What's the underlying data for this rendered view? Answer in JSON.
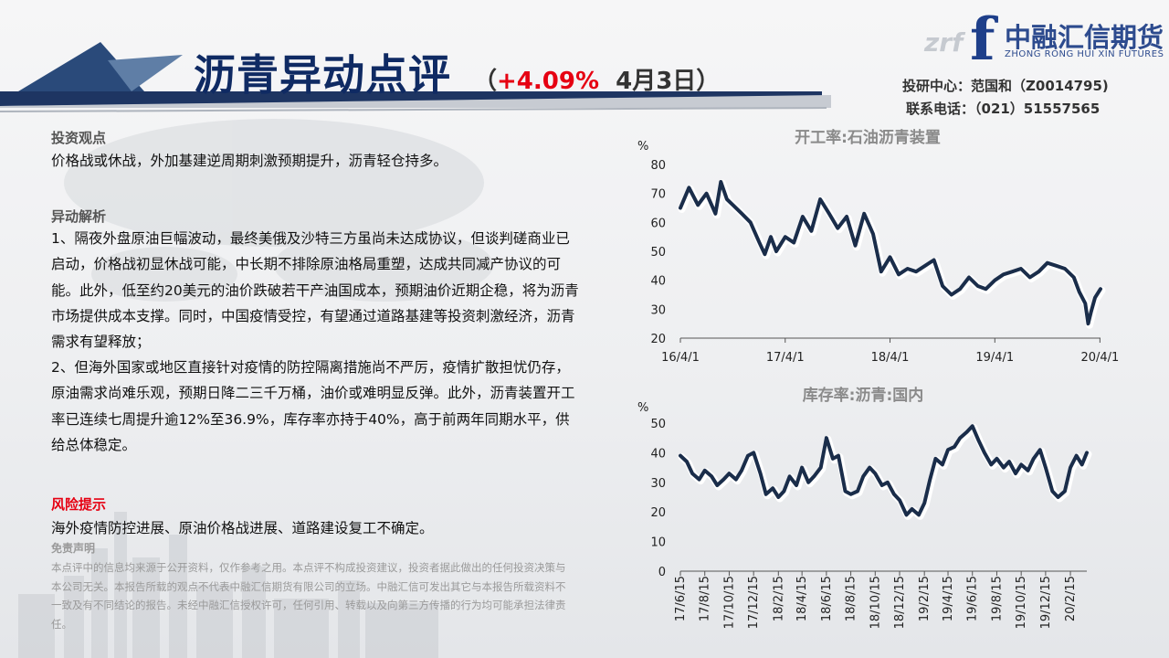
{
  "header": {
    "title": "沥青异动点评",
    "subtitle_open": "（",
    "change": "+4.09%",
    "date": "4月3日）",
    "logo_mark": "f",
    "logo_watermark": "zrf",
    "logo_cn": "中融汇信期货",
    "logo_en": "ZHONG RONG HUI XIN FUTURES",
    "contact_line1": "投研中心：范国和（Z0014795)",
    "contact_line2": "联系电话：（021）51557565"
  },
  "colors": {
    "brand_navy": "#0f2a63",
    "accent_red": "#e60012",
    "line_navy": "#1a2d4a"
  },
  "content": {
    "view_label": "投资观点",
    "view_text": "价格战或休战，外加基建逆周期刺激预期提升，沥青轻仓持多。",
    "analysis_label": "异动解析",
    "analysis_p1": "1、隔夜外盘原油巨幅波动，最终美俄及沙特三方虽尚未达成协议，但谈判磋商业已启动，价格战初显休战可能，中长期不排除原油格局重塑，达成共同减产协议的可能。此外，低至约20美元的油价跌破若干产油国成本，预期油价近期企稳，将为沥青市场提供成本支撑。同时，中国疫情受控，有望通过道路基建等投资刺激经济，沥青需求有望释放；",
    "analysis_p2": "2、但海外国家或地区直接针对疫情的防控隔离措施尚不严厉，疫情扩散担忧仍存，原油需求尚难乐观，预期日降二三千万桶，油价或难明显反弹。此外，沥青装置开工率已连续七周提升逾12%至36.9%，库存率亦持于40%，高于前两年同期水平，供给总体稳定。",
    "risk_label": "风险提示",
    "risk_text": "海外疫情防控进展、原油价格战进展、道路建设复工不确定。",
    "disclaimer_title": "免责声明",
    "disclaimer_text": "本点评中的信息均来源于公开资料，仅作参考之用。本点评不构成投资建议，投资者据此做出的任何投资决策与本公司无关。本报告所载的观点不代表中融汇信期货有限公司的立场。中融汇信可发出其它与本报告所载资料不一致及有不同结论的报告。未经中融汇信授权许可，任何引用、转载以及向第三方传播的行为均可能承担法律责任。"
  },
  "chart_data": [
    {
      "type": "line",
      "title": "开工率:石油沥青装置",
      "ylabel": "%",
      "ylim": [
        20,
        80
      ],
      "yticks": [
        20,
        30,
        40,
        50,
        60,
        70,
        80
      ],
      "xlim": [
        "2016-04-01",
        "2020-04-03"
      ],
      "xticks": [
        {
          "date": "2016-04-01",
          "label": "16/4/1"
        },
        {
          "date": "2017-04-01",
          "label": "17/4/1"
        },
        {
          "date": "2018-04-01",
          "label": "18/4/1"
        },
        {
          "date": "2019-04-01",
          "label": "19/4/1"
        },
        {
          "date": "2020-04-01",
          "label": "20/4/1"
        }
      ],
      "grid": false,
      "series": [
        {
          "x": [
            "2016-04-01",
            "2016-05-01",
            "2016-06-01",
            "2016-07-01",
            "2016-08-01",
            "2016-08-20",
            "2016-09-10",
            "2016-10-01",
            "2016-11-01",
            "2016-12-01",
            "2017-01-01",
            "2017-01-20",
            "2017-02-10",
            "2017-03-01",
            "2017-04-01",
            "2017-05-01",
            "2017-06-01",
            "2017-07-01",
            "2017-08-01",
            "2017-09-01",
            "2017-10-01",
            "2017-11-01",
            "2017-12-01",
            "2018-01-01",
            "2018-02-01",
            "2018-03-01",
            "2018-04-01",
            "2018-05-01",
            "2018-06-01",
            "2018-07-01",
            "2018-08-01",
            "2018-09-01",
            "2018-10-01",
            "2018-11-01",
            "2018-12-01",
            "2019-01-01",
            "2019-02-01",
            "2019-03-01",
            "2019-04-01",
            "2019-05-01",
            "2019-06-01",
            "2019-07-01",
            "2019-08-01",
            "2019-09-01",
            "2019-10-01",
            "2019-11-01",
            "2019-12-01",
            "2020-01-01",
            "2020-01-20",
            "2020-02-10",
            "2020-02-20",
            "2020-03-01",
            "2020-03-15",
            "2020-04-03"
          ],
          "values": [
            65,
            72,
            66,
            70,
            63,
            74,
            68,
            66,
            63,
            60,
            53,
            49,
            55,
            50,
            55,
            53,
            62,
            57,
            68,
            63,
            58,
            62,
            52,
            63,
            56,
            43,
            48,
            42,
            44,
            43,
            45,
            47,
            38,
            35,
            37,
            41,
            38,
            37,
            40,
            42,
            43,
            44,
            41,
            43,
            46,
            45,
            44,
            41,
            36,
            32,
            25,
            29,
            34,
            37
          ]
        }
      ]
    },
    {
      "type": "line",
      "title": "库存率:沥青:国内",
      "ylabel": "%",
      "ylim": [
        0,
        50
      ],
      "yticks": [
        0,
        10,
        20,
        30,
        40,
        50
      ],
      "xlim": [
        "2017-06-15",
        "2020-03-27"
      ],
      "xticks": [
        {
          "date": "2017-06-15",
          "label": "17/6/15"
        },
        {
          "date": "2017-08-15",
          "label": "17/8/15"
        },
        {
          "date": "2017-10-15",
          "label": "17/10/15"
        },
        {
          "date": "2017-12-15",
          "label": "17/12/15"
        },
        {
          "date": "2018-02-15",
          "label": "18/2/15"
        },
        {
          "date": "2018-04-15",
          "label": "18/4/15"
        },
        {
          "date": "2018-06-15",
          "label": "18/6/15"
        },
        {
          "date": "2018-08-15",
          "label": "18/8/15"
        },
        {
          "date": "2018-10-15",
          "label": "18/10/15"
        },
        {
          "date": "2018-12-15",
          "label": "18/12/15"
        },
        {
          "date": "2019-02-15",
          "label": "19/2/15"
        },
        {
          "date": "2019-04-15",
          "label": "19/4/15"
        },
        {
          "date": "2019-06-15",
          "label": "19/6/15"
        },
        {
          "date": "2019-08-15",
          "label": "19/8/15"
        },
        {
          "date": "2019-10-15",
          "label": "19/10/15"
        },
        {
          "date": "2019-12-15",
          "label": "19/12/15"
        },
        {
          "date": "2020-02-15",
          "label": "20/2/15"
        }
      ],
      "grid": false,
      "series": [
        {
          "x": [
            "2017-06-15",
            "2017-07-01",
            "2017-07-15",
            "2017-08-01",
            "2017-08-15",
            "2017-09-01",
            "2017-09-15",
            "2017-10-01",
            "2017-10-15",
            "2017-11-01",
            "2017-11-15",
            "2017-12-01",
            "2017-12-15",
            "2018-01-01",
            "2018-01-15",
            "2018-02-01",
            "2018-02-15",
            "2018-03-01",
            "2018-03-15",
            "2018-04-01",
            "2018-04-15",
            "2018-05-01",
            "2018-05-15",
            "2018-06-01",
            "2018-06-15",
            "2018-07-01",
            "2018-07-15",
            "2018-08-01",
            "2018-08-15",
            "2018-09-01",
            "2018-09-15",
            "2018-10-01",
            "2018-10-15",
            "2018-11-01",
            "2018-11-15",
            "2018-12-01",
            "2018-12-15",
            "2019-01-01",
            "2019-01-15",
            "2019-02-01",
            "2019-02-15",
            "2019-03-01",
            "2019-03-15",
            "2019-04-01",
            "2019-04-15",
            "2019-05-01",
            "2019-05-15",
            "2019-06-01",
            "2019-06-15",
            "2019-07-01",
            "2019-07-15",
            "2019-08-01",
            "2019-08-15",
            "2019-09-01",
            "2019-09-15",
            "2019-10-01",
            "2019-10-15",
            "2019-11-01",
            "2019-11-15",
            "2019-12-01",
            "2019-12-15",
            "2020-01-01",
            "2020-01-15",
            "2020-02-01",
            "2020-02-15",
            "2020-03-01",
            "2020-03-15",
            "2020-03-27"
          ],
          "values": [
            39,
            37,
            33,
            31,
            34,
            32,
            29,
            31,
            33,
            31,
            34,
            39,
            40,
            33,
            26,
            28,
            25,
            27,
            32,
            29,
            35,
            30,
            32,
            35,
            45,
            38,
            39,
            27,
            26,
            27,
            32,
            35,
            33,
            29,
            30,
            26,
            24,
            19,
            21,
            19,
            23,
            31,
            38,
            36,
            41,
            42,
            45,
            47,
            49,
            44,
            40,
            36,
            38,
            35,
            37,
            33,
            36,
            34,
            38,
            41,
            35,
            27,
            25,
            27,
            35,
            39,
            36,
            40
          ]
        }
      ]
    }
  ]
}
